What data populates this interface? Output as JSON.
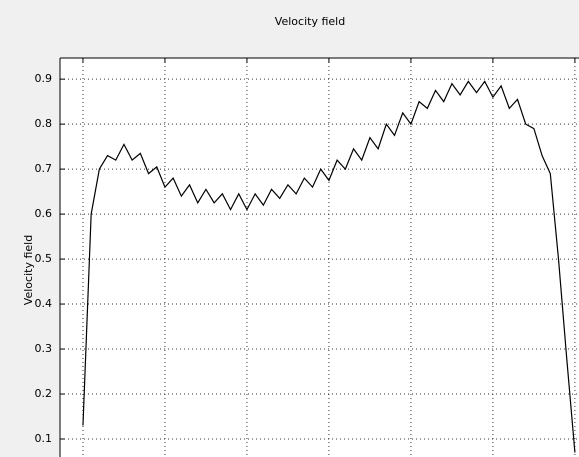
{
  "chart_data": {
    "type": "line",
    "title": "Velocity field",
    "ylabel": "Velocity field",
    "x": [
      0,
      2,
      4,
      6,
      8,
      10,
      12,
      14,
      16,
      18,
      20,
      22,
      24,
      26,
      28,
      30,
      32,
      34,
      36,
      38,
      40,
      42,
      44,
      46,
      48,
      50,
      52,
      54,
      56,
      58,
      60,
      62,
      64,
      66,
      68,
      70,
      72,
      74,
      76,
      78,
      80,
      82,
      84,
      86,
      88,
      90,
      92,
      94,
      96,
      98,
      100,
      102,
      104,
      106,
      108,
      110,
      112,
      114,
      116,
      118,
      120
    ],
    "series": [
      {
        "color": "#000000",
        "values": [
          0.13,
          0.6,
          0.7,
          0.73,
          0.72,
          0.755,
          0.72,
          0.735,
          0.69,
          0.705,
          0.66,
          0.68,
          0.64,
          0.665,
          0.625,
          0.655,
          0.625,
          0.645,
          0.61,
          0.645,
          0.61,
          0.645,
          0.62,
          0.655,
          0.635,
          0.665,
          0.645,
          0.68,
          0.66,
          0.7,
          0.675,
          0.72,
          0.7,
          0.745,
          0.72,
          0.77,
          0.745,
          0.8,
          0.775,
          0.825,
          0.8,
          0.85,
          0.835,
          0.875,
          0.85,
          0.89,
          0.865,
          0.895,
          0.87,
          0.895,
          0.86,
          0.885,
          0.835,
          0.855,
          0.8,
          0.79,
          0.73,
          0.69,
          0.5,
          0.28,
          0.07
        ]
      }
    ],
    "xlim": [
      -5.6,
      121
    ],
    "xticks": [
      0,
      20,
      40,
      60,
      80,
      100,
      120
    ],
    "ylim": [
      0.06,
      0.947
    ],
    "yticks": [
      0.1,
      0.2,
      0.3,
      0.4,
      0.5,
      0.6,
      0.7,
      0.8,
      0.9
    ],
    "grid": true
  }
}
